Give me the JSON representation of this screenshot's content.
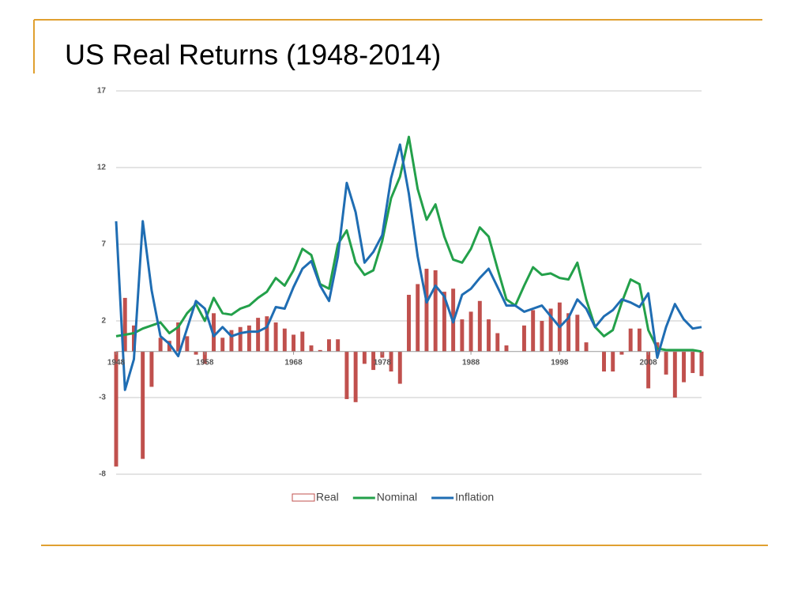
{
  "title": "US Real Returns (1948-2014)",
  "chart_data": {
    "type": "combo",
    "x": [
      1948,
      1949,
      1950,
      1951,
      1952,
      1953,
      1954,
      1955,
      1956,
      1957,
      1958,
      1959,
      1960,
      1961,
      1962,
      1963,
      1964,
      1965,
      1966,
      1967,
      1968,
      1969,
      1970,
      1971,
      1972,
      1973,
      1974,
      1975,
      1976,
      1977,
      1978,
      1979,
      1980,
      1981,
      1982,
      1983,
      1984,
      1985,
      1986,
      1987,
      1988,
      1989,
      1990,
      1991,
      1992,
      1993,
      1994,
      1995,
      1996,
      1997,
      1998,
      1999,
      2000,
      2001,
      2002,
      2003,
      2004,
      2005,
      2006,
      2007,
      2008,
      2009,
      2010,
      2011,
      2012,
      2013,
      2014
    ],
    "xlim": [
      1948,
      2014
    ],
    "xticks": [
      1948,
      1958,
      1968,
      1978,
      1988,
      1998,
      2008
    ],
    "ylim": [
      -8,
      17
    ],
    "yticks": [
      17,
      12,
      7,
      2,
      -3,
      -8
    ],
    "grid": true,
    "legend": "bottom",
    "series": [
      {
        "name": "Real",
        "type": "bar",
        "color": "#c0504d",
        "values": [
          -7.5,
          3.5,
          1.7,
          -7,
          -2.3,
          0.9,
          0.7,
          1.9,
          1.0,
          -0.2,
          -0.8,
          2.5,
          0.9,
          1.4,
          1.6,
          1.7,
          2.2,
          2.3,
          1.9,
          1.5,
          1.1,
          1.3,
          0.4,
          0.1,
          0.8,
          0.8,
          -3.1,
          -3.3,
          -0.8,
          -1.2,
          -0.4,
          -1.3,
          -2.1,
          3.7,
          4.4,
          5.4,
          5.3,
          3.9,
          4.1,
          2.1,
          2.6,
          3.3,
          2.1,
          1.2,
          0.4,
          0.0,
          1.7,
          2.7,
          2.0,
          2.8,
          3.2,
          2.5,
          2.4,
          0.6,
          0.0,
          -1.3,
          -1.3,
          -0.2,
          1.5,
          1.5,
          -2.4,
          0.6,
          -1.5,
          -3.0,
          -2.0,
          -1.4,
          -1.6
        ]
      },
      {
        "name": "Nominal",
        "type": "line",
        "color": "#23a04a",
        "values": [
          1.0,
          1.1,
          1.2,
          1.5,
          1.7,
          1.9,
          1.2,
          1.6,
          2.5,
          3.1,
          2.0,
          3.5,
          2.5,
          2.4,
          2.8,
          3.0,
          3.5,
          3.9,
          4.8,
          4.3,
          5.3,
          6.7,
          6.3,
          4.4,
          4.1,
          7.0,
          7.9,
          5.8,
          5.0,
          5.3,
          7.2,
          10.0,
          11.4,
          14.0,
          10.6,
          8.6,
          9.6,
          7.5,
          6.0,
          5.8,
          6.7,
          8.1,
          7.5,
          5.4,
          3.4,
          3.0,
          4.3,
          5.5,
          5.0,
          5.1,
          4.8,
          4.7,
          5.8,
          3.4,
          1.6,
          1.0,
          1.4,
          3.2,
          4.7,
          4.4,
          1.4,
          0.2,
          0.1,
          0.1,
          0.1,
          0.1,
          0.0
        ]
      },
      {
        "name": "Inflation",
        "type": "line",
        "color": "#1f6db3",
        "values": [
          8.5,
          -2.5,
          -0.5,
          8.5,
          4.0,
          1.0,
          0.5,
          -0.3,
          1.5,
          3.3,
          2.8,
          1.0,
          1.6,
          1.0,
          1.2,
          1.3,
          1.3,
          1.6,
          2.9,
          2.8,
          4.2,
          5.4,
          5.9,
          4.3,
          3.3,
          6.2,
          11.0,
          9.1,
          5.8,
          6.5,
          7.6,
          11.3,
          13.5,
          10.3,
          6.2,
          3.2,
          4.3,
          3.6,
          1.9,
          3.7,
          4.1,
          4.8,
          5.4,
          4.2,
          3.0,
          3.0,
          2.6,
          2.8,
          3.0,
          2.3,
          1.6,
          2.2,
          3.4,
          2.8,
          1.6,
          2.3,
          2.7,
          3.4,
          3.2,
          2.9,
          3.8,
          -0.4,
          1.6,
          3.1,
          2.1,
          1.5,
          1.6
        ]
      }
    ]
  }
}
